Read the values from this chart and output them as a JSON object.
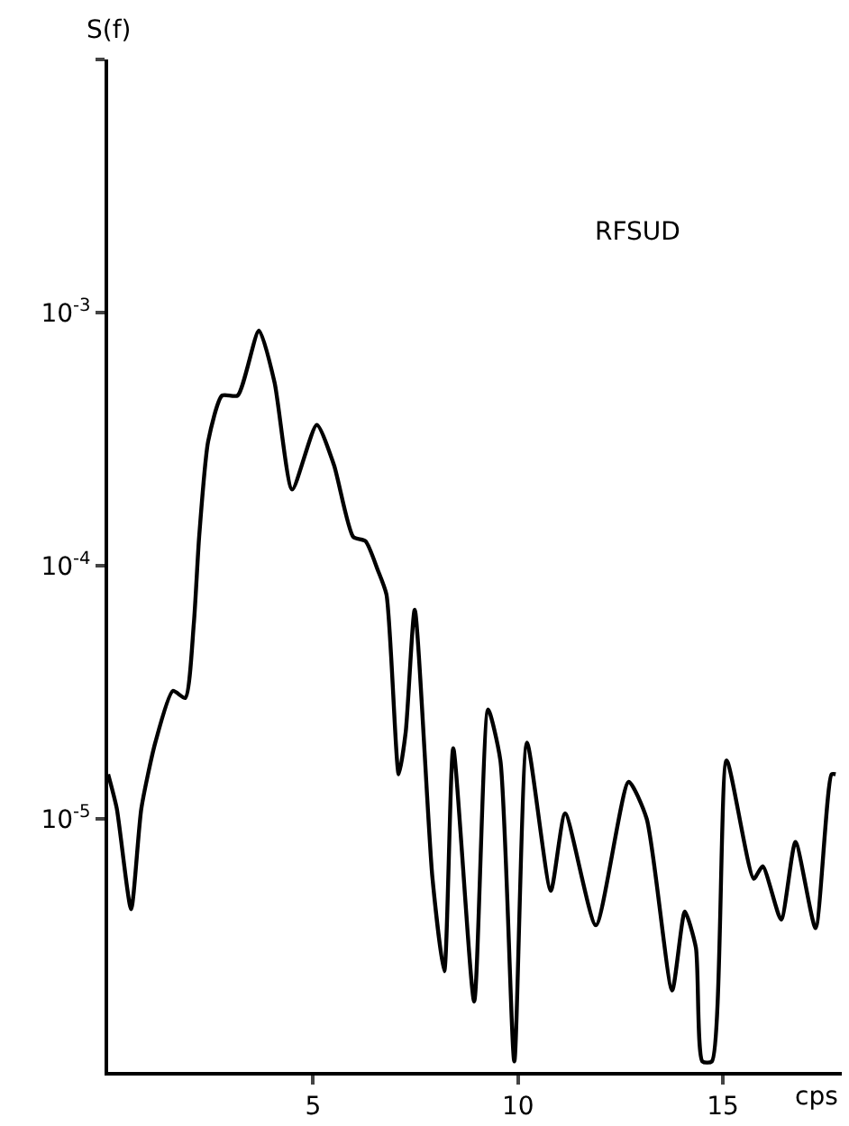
{
  "chart_data": {
    "type": "line",
    "ylabel": "S(f)",
    "xlabel": "cps",
    "annotations": [
      "RFSUD"
    ],
    "log": "y",
    "grid": false,
    "marker": "none",
    "line_style": "solid",
    "xlim": [
      0,
      17.9
    ],
    "xticks": [
      5,
      10,
      15
    ],
    "ylim": [
      1e-06,
      0.01
    ],
    "yticks": [
      {
        "value": 1e-05,
        "label": "10$^{-5}$"
      },
      {
        "value": 0.0001,
        "label": "10$^{-4}$"
      },
      {
        "value": 0.001,
        "label": "10$^{-3}$"
      },
      {
        "value": 0.01,
        "label": null
      }
    ],
    "series": [
      {
        "color": "#000000",
        "x": [
          0,
          0.21,
          0.56,
          0.81,
          1.15,
          1.58,
          1.88,
          2.09,
          2.22,
          2.44,
          2.78,
          3.16,
          3.68,
          4.06,
          4.49,
          5.09,
          5.51,
          5.98,
          6.28,
          6.58,
          6.79,
          7.09,
          7.26,
          7.48,
          7.91,
          8.2,
          8.42,
          8.93,
          9.27,
          9.57,
          9.91,
          10.22,
          10.8,
          11.15,
          11.9,
          12.7,
          13.14,
          13.76,
          14.07,
          14.34,
          14.5,
          14.73,
          15.09,
          15.75,
          15.97,
          16.42,
          16.77,
          17.26,
          17.65,
          17.75
        ],
        "values": [
          1.5e-05,
          1.1e-05,
          4.4e-06,
          1.1e-05,
          2e-05,
          3.2e-05,
          3e-05,
          5.9e-05,
          0.00013,
          0.00031,
          0.00047,
          0.00047,
          0.00085,
          0.00053,
          0.0002,
          0.00036,
          0.00025,
          0.00013,
          0.000125,
          9.6e-05,
          7.7e-05,
          1.5e-05,
          2.2e-05,
          6.7e-05,
          5.9e-06,
          2.5e-06,
          1.9e-05,
          1.9e-06,
          2.7e-05,
          1.7e-05,
          1.1e-06,
          2e-05,
          5.2e-06,
          1.05e-05,
          3.8e-06,
          1.4e-05,
          1e-05,
          2.1e-06,
          4.3e-06,
          3.1e-06,
          1.1e-06,
          1.1e-06,
          1.7e-05,
          5.8e-06,
          6.5e-06,
          4e-06,
          8.1e-06,
          3.7e-06,
          1.5e-05,
          1.5e-05
        ]
      }
    ]
  }
}
